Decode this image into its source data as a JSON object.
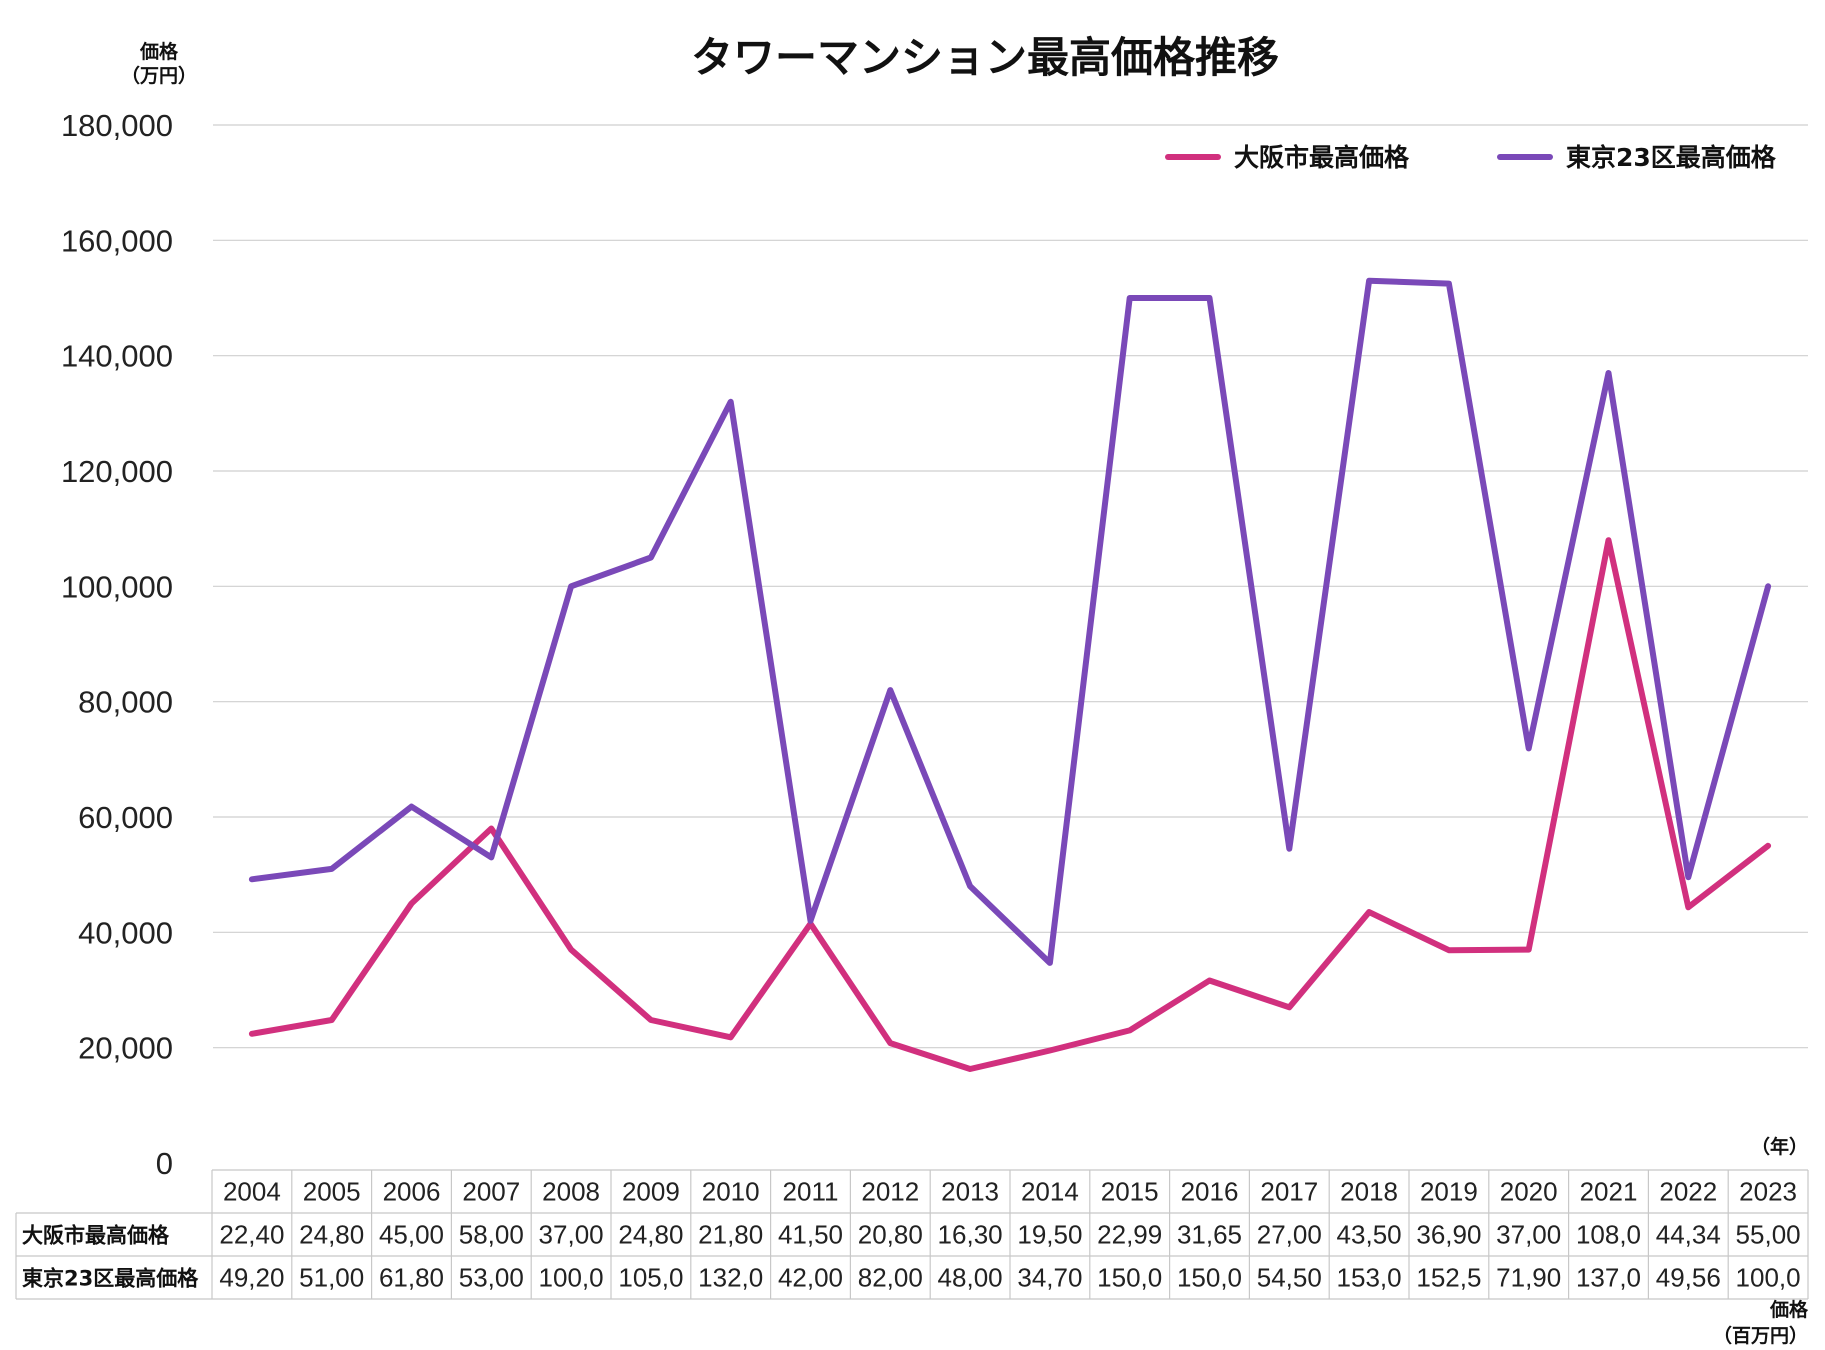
{
  "chart_data": {
    "type": "line",
    "title": "タワーマンション最高価格推移",
    "ylabel": [
      "価格",
      "（万円）"
    ],
    "xunit": "（年）",
    "table_unit": [
      "価格",
      "（百万円）"
    ],
    "ylim": [
      0,
      180000
    ],
    "yticks": [
      "0",
      "20,000",
      "40,000",
      "60,000",
      "80,000",
      "100,000",
      "120,000",
      "140,000",
      "160,000",
      "180,000"
    ],
    "grid": true,
    "legend_position": "top-right",
    "categories": [
      "2004",
      "2005",
      "2006",
      "2007",
      "2008",
      "2009",
      "2010",
      "2011",
      "2012",
      "2013",
      "2014",
      "2015",
      "2016",
      "2017",
      "2018",
      "2019",
      "2020",
      "2021",
      "2022",
      "2023"
    ],
    "series": [
      {
        "name": "大阪市最高価格",
        "color": "#d1307e",
        "values": [
          22400,
          24800,
          45000,
          58000,
          37000,
          24800,
          21800,
          41500,
          20800,
          16300,
          19500,
          22990,
          31650,
          27000,
          43500,
          36900,
          37000,
          108000,
          44340,
          55000
        ],
        "table_values": [
          "22,40",
          "24,80",
          "45,00",
          "58,00",
          "37,00",
          "24,80",
          "21,80",
          "41,50",
          "20,80",
          "16,30",
          "19,50",
          "22,99",
          "31,65",
          "27,00",
          "43,50",
          "36,90",
          "37,00",
          "108,0",
          "44,34",
          "55,00"
        ]
      },
      {
        "name": "東京23区最高価格",
        "color": "#7a49b8",
        "values": [
          49200,
          51000,
          61800,
          53000,
          100000,
          105000,
          132000,
          42000,
          82000,
          48000,
          34700,
          150000,
          150000,
          54500,
          153000,
          152500,
          71900,
          137000,
          49560,
          100000
        ],
        "table_values": [
          "49,20",
          "51,00",
          "61,80",
          "53,00",
          "100,0",
          "105,0",
          "132,0",
          "42,00",
          "82,00",
          "48,00",
          "34,70",
          "150,0",
          "150,0",
          "54,50",
          "153,0",
          "152,5",
          "71,90",
          "137,0",
          "49,56",
          "100,0"
        ]
      }
    ]
  }
}
